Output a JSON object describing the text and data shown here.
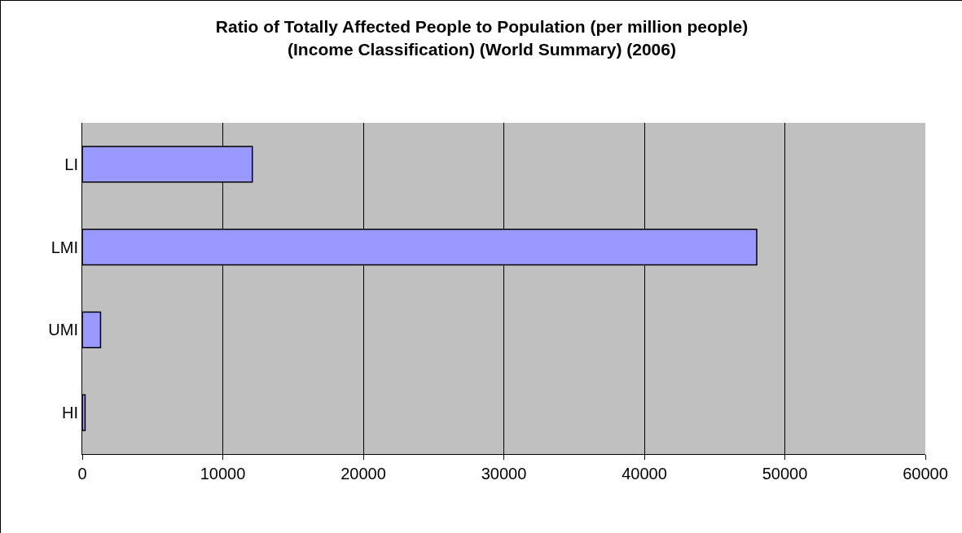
{
  "chart_data": {
    "type": "bar",
    "orientation": "horizontal",
    "title": "Ratio of Totally Affected People to Population (per million people)\n(Income Classification) (World Summary) (2006)",
    "categories": [
      "LI",
      "LMI",
      "UMI",
      "HI"
    ],
    "values": [
      12100,
      48000,
      1300,
      200
    ],
    "color": "#9999ff",
    "xlim": [
      0,
      60000
    ],
    "xticks": [
      0,
      10000,
      20000,
      30000,
      40000,
      50000,
      60000
    ],
    "grid": "x"
  }
}
